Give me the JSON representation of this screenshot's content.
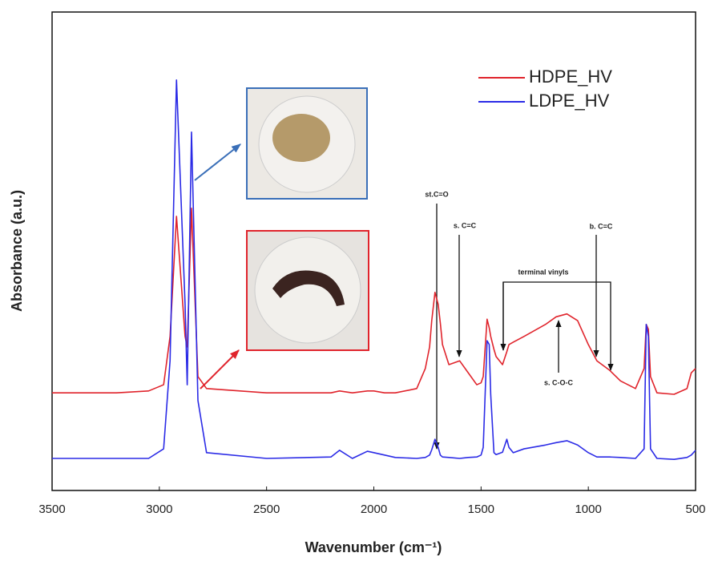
{
  "chart_data": {
    "type": "line",
    "xlabel": "Wavenumber (cm⁻¹)",
    "ylabel": "Absorbance (a.u.)",
    "xlim": [
      3500,
      500
    ],
    "ylim": [
      0,
      100
    ],
    "xticks": [
      3500,
      3000,
      2500,
      2000,
      1500,
      1000,
      500
    ],
    "legend": "upper right",
    "x": [
      3500,
      3200,
      3050,
      2980,
      2950,
      2920,
      2880,
      2870,
      2850,
      2820,
      2780,
      2500,
      2200,
      2160,
      2100,
      2030,
      2000,
      1950,
      1900,
      1800,
      1760,
      1740,
      1730,
      1715,
      1700,
      1690,
      1680,
      1650,
      1600,
      1560,
      1520,
      1500,
      1490,
      1472,
      1462,
      1455,
      1440,
      1430,
      1400,
      1380,
      1370,
      1350,
      1300,
      1200,
      1150,
      1100,
      1050,
      1000,
      960,
      900,
      850,
      780,
      740,
      730,
      720,
      710,
      680,
      600,
      540,
      520,
      500
    ],
    "series": [
      {
        "name": "HDPE_HV",
        "color": "#e0242c",
        "values": [
          20.4,
          20.4,
          20.8,
          22.1,
          32.2,
          57.3,
          32.2,
          30.0,
          59.0,
          23.8,
          21.3,
          20.4,
          20.4,
          20.8,
          20.4,
          20.8,
          20.8,
          20.4,
          20.4,
          21.3,
          25.5,
          30.0,
          35.5,
          41.4,
          38.9,
          35.0,
          30.5,
          26.3,
          27.1,
          24.6,
          22.1,
          22.5,
          23.8,
          35.8,
          34.0,
          32.2,
          29.5,
          28.0,
          26.3,
          29.0,
          30.5,
          31.0,
          32.2,
          34.7,
          36.3,
          36.9,
          35.5,
          30.5,
          27.1,
          25.1,
          22.9,
          21.3,
          25.5,
          34.7,
          33.7,
          23.8,
          20.4,
          20.1,
          21.3,
          24.6,
          25.5
        ]
      },
      {
        "name": "LDPE_HV",
        "color": "#2b2be6",
        "values": [
          6.7,
          6.7,
          6.7,
          8.7,
          27.1,
          85.8,
          38.9,
          22.1,
          74.9,
          18.8,
          7.9,
          6.7,
          7.0,
          8.4,
          6.7,
          8.2,
          7.9,
          7.4,
          6.9,
          6.7,
          6.9,
          7.4,
          8.5,
          10.7,
          9.0,
          7.4,
          7.0,
          6.9,
          6.7,
          6.9,
          7.0,
          7.4,
          9.0,
          31.3,
          30.5,
          20.0,
          7.9,
          7.5,
          8.0,
          10.7,
          9.0,
          7.9,
          8.7,
          9.5,
          10.0,
          10.4,
          9.5,
          7.9,
          7.0,
          7.0,
          6.9,
          6.7,
          8.7,
          34.7,
          32.2,
          8.7,
          6.7,
          6.5,
          6.9,
          7.4,
          8.4
        ]
      }
    ],
    "annotations": [
      "st.C=O",
      "s. C=C",
      "terminal vinyls",
      "b. C=C",
      "s. C-O-C"
    ]
  }
}
